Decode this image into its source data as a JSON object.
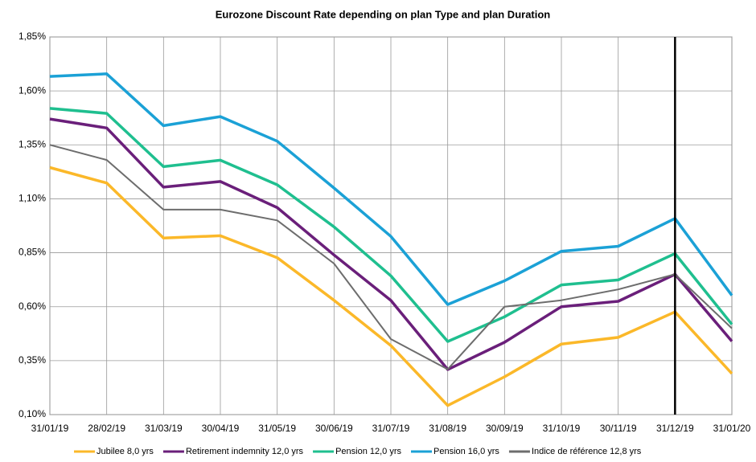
{
  "chart_data": {
    "type": "line",
    "title": "Eurozone Discount Rate depending on plan Type and plan Duration",
    "categories": [
      "31/01/19",
      "28/02/19",
      "31/03/19",
      "30/04/19",
      "31/05/19",
      "30/06/19",
      "31/07/19",
      "31/08/19",
      "30/09/19",
      "31/10/19",
      "30/11/19",
      "31/12/19",
      "31/01/20"
    ],
    "series": [
      {
        "name": "Jubilee 8,0 yrs",
        "color": "#fbb829",
        "values": [
          1.245,
          1.173,
          0.918,
          0.929,
          0.827,
          0.63,
          0.42,
          0.142,
          0.275,
          0.427,
          0.458,
          0.576,
          0.29
        ]
      },
      {
        "name": "Retirement indemnity 12,0 yrs",
        "color": "#6a1f7a",
        "values": [
          1.47,
          1.428,
          1.154,
          1.18,
          1.059,
          0.84,
          0.629,
          0.309,
          0.435,
          0.6,
          0.625,
          0.75,
          0.44
        ]
      },
      {
        "name": "Pension 12,0 yrs",
        "color": "#1fbf8f",
        "values": [
          1.519,
          1.496,
          1.249,
          1.279,
          1.165,
          0.97,
          0.743,
          0.439,
          0.553,
          0.701,
          0.724,
          0.846,
          0.518
        ]
      },
      {
        "name": "Pension 16,0 yrs",
        "color": "#1ba1d6",
        "values": [
          1.667,
          1.679,
          1.439,
          1.481,
          1.367,
          1.15,
          0.926,
          0.61,
          0.72,
          0.857,
          0.88,
          1.009,
          0.652
        ]
      },
      {
        "name": "Indice de référence 12,8 yrs",
        "color": "#6d6d6d",
        "values": [
          1.35,
          1.28,
          1.05,
          1.05,
          1.0,
          0.8,
          0.45,
          0.31,
          0.6,
          0.63,
          0.68,
          0.75,
          0.5
        ]
      }
    ],
    "ylim": [
      0.1,
      1.85
    ],
    "yticks": [
      {
        "value": 0.1,
        "label": "0,10%"
      },
      {
        "value": 0.35,
        "label": "0,35%"
      },
      {
        "value": 0.6,
        "label": "0,60%"
      },
      {
        "value": 0.85,
        "label": "0,85%"
      },
      {
        "value": 1.1,
        "label": "1,10%"
      },
      {
        "value": 1.35,
        "label": "1,35%"
      },
      {
        "value": 1.6,
        "label": "1,60%"
      },
      {
        "value": 1.85,
        "label": "1,85%"
      }
    ],
    "grid": true,
    "vline": "31/12/19",
    "legend": "bottom"
  }
}
